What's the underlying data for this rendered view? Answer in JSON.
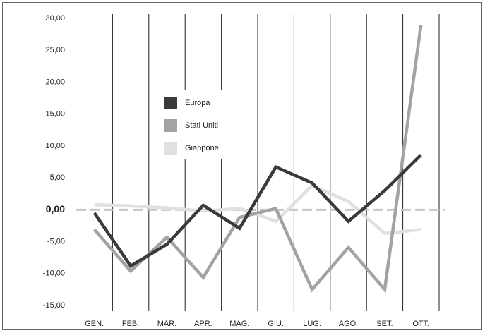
{
  "chart_data": {
    "type": "line",
    "categories": [
      "GEN.",
      "FEB.",
      "MAR.",
      "APR.",
      "MAG.",
      "GIU.",
      "LUG.",
      "AGO.",
      "SET.",
      "OTT."
    ],
    "series": [
      {
        "name": "Europa",
        "color": "#3a3a3a",
        "values": [
          -0.5,
          -8.8,
          -5.4,
          0.7,
          -2.9,
          6.7,
          4.2,
          -1.8,
          3.0,
          8.6
        ]
      },
      {
        "name": "Stati Uniti",
        "color": "#a3a3a3",
        "values": [
          -3.1,
          -9.6,
          -4.3,
          -10.6,
          -1.2,
          0.2,
          -12.5,
          -5.9,
          -12.5,
          29.0
        ]
      },
      {
        "name": "Giappone",
        "color": "#e0e0e0",
        "values": [
          0.8,
          0.6,
          0.3,
          -0.2,
          0.2,
          -1.8,
          3.8,
          1.3,
          -3.7,
          -3.1
        ]
      }
    ],
    "ylim": [
      -15,
      30
    ],
    "yticks": [
      {
        "value": -15,
        "label": "-15,00"
      },
      {
        "value": -10,
        "label": "-10,00"
      },
      {
        "value": -5,
        "label": "-5,00"
      },
      {
        "value": 0,
        "label": "0,00"
      },
      {
        "value": 5,
        "label": "5,00"
      },
      {
        "value": 10,
        "label": "10,00"
      },
      {
        "value": 15,
        "label": "15,00"
      },
      {
        "value": 20,
        "label": "20,00"
      },
      {
        "value": 25,
        "label": "25,00"
      },
      {
        "value": 30,
        "label": "30,00"
      }
    ]
  }
}
